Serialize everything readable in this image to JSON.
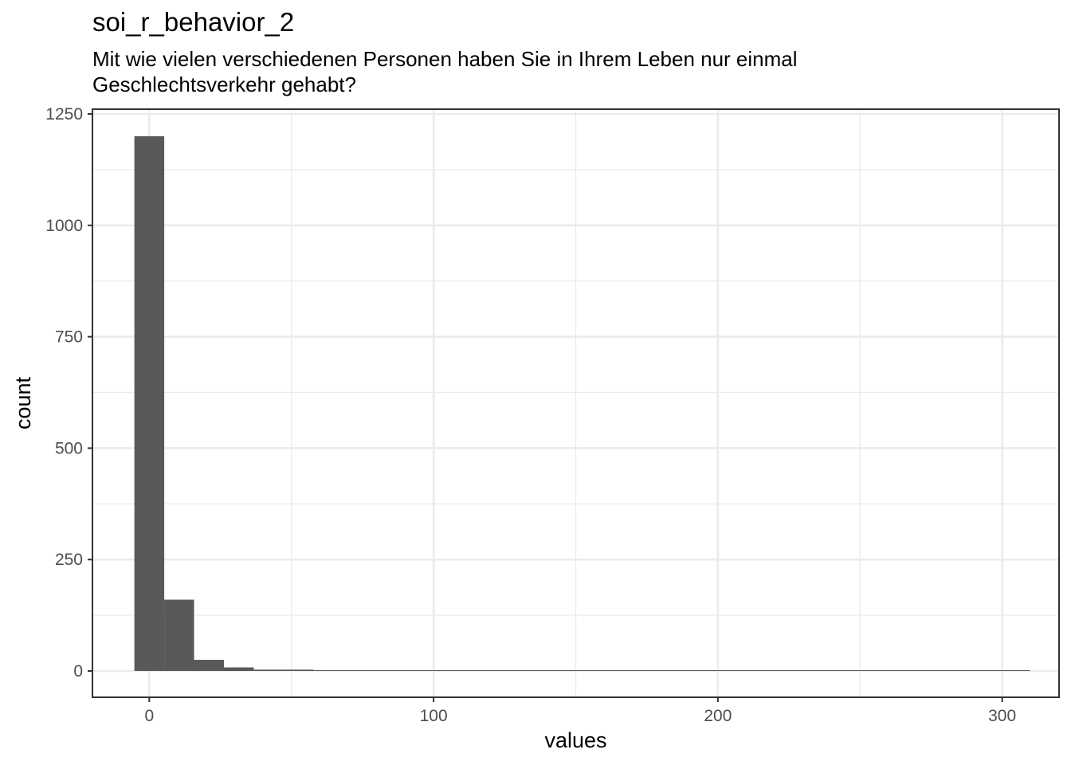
{
  "chart_data": {
    "type": "bar",
    "variant": "histogram",
    "title": "soi_r_behavior_2",
    "subtitle": "Mit wie vielen verschiedenen Personen haben Sie in Ihrem Leben nur einmal Geschlechtsverkehr gehabt?",
    "xlabel": "values",
    "ylabel": "count",
    "xlim": [
      -20,
      320
    ],
    "ylim": [
      -60,
      1250
    ],
    "x_ticks": [
      0,
      100,
      200,
      300
    ],
    "y_ticks": [
      0,
      250,
      500,
      750,
      1000,
      1250
    ],
    "bin_width": 10.5,
    "bins": [
      {
        "x_start": -5.25,
        "x_end": 5.25,
        "count": 1200
      },
      {
        "x_start": 5.25,
        "x_end": 15.75,
        "count": 160
      },
      {
        "x_start": 15.75,
        "x_end": 26.25,
        "count": 25
      },
      {
        "x_start": 26.25,
        "x_end": 36.75,
        "count": 8
      },
      {
        "x_start": 36.75,
        "x_end": 47.25,
        "count": 3
      },
      {
        "x_start": 47.25,
        "x_end": 57.75,
        "count": 3
      },
      {
        "x_start": 57.75,
        "x_end": 68.25,
        "count": 1
      },
      {
        "x_start": 68.25,
        "x_end": 78.75,
        "count": 0
      },
      {
        "x_start": 78.75,
        "x_end": 89.25,
        "count": 0
      },
      {
        "x_start": 89.25,
        "x_end": 99.75,
        "count": 0
      },
      {
        "x_start": 99.75,
        "x_end": 110.25,
        "count": 1
      },
      {
        "x_start": 110.25,
        "x_end": 120.75,
        "count": 0
      },
      {
        "x_start": 120.75,
        "x_end": 131.25,
        "count": 0
      },
      {
        "x_start": 131.25,
        "x_end": 141.75,
        "count": 0
      },
      {
        "x_start": 141.75,
        "x_end": 152.25,
        "count": 0
      },
      {
        "x_start": 152.25,
        "x_end": 162.75,
        "count": 0
      },
      {
        "x_start": 162.75,
        "x_end": 173.25,
        "count": 0
      },
      {
        "x_start": 173.25,
        "x_end": 183.75,
        "count": 0
      },
      {
        "x_start": 183.75,
        "x_end": 194.25,
        "count": 0
      },
      {
        "x_start": 194.25,
        "x_end": 204.75,
        "count": 0
      },
      {
        "x_start": 204.75,
        "x_end": 215.25,
        "count": 0
      },
      {
        "x_start": 215.25,
        "x_end": 225.75,
        "count": 0
      },
      {
        "x_start": 225.75,
        "x_end": 236.25,
        "count": 0
      },
      {
        "x_start": 236.25,
        "x_end": 246.75,
        "count": 0
      },
      {
        "x_start": 246.75,
        "x_end": 257.25,
        "count": 0
      },
      {
        "x_start": 257.25,
        "x_end": 267.75,
        "count": 0
      },
      {
        "x_start": 267.75,
        "x_end": 278.25,
        "count": 0
      },
      {
        "x_start": 278.25,
        "x_end": 288.75,
        "count": 0
      },
      {
        "x_start": 288.75,
        "x_end": 299.25,
        "count": 0
      },
      {
        "x_start": 299.25,
        "x_end": 309.75,
        "count": 1
      }
    ],
    "bar_color": "#595959",
    "grid": true,
    "legend": "none"
  }
}
